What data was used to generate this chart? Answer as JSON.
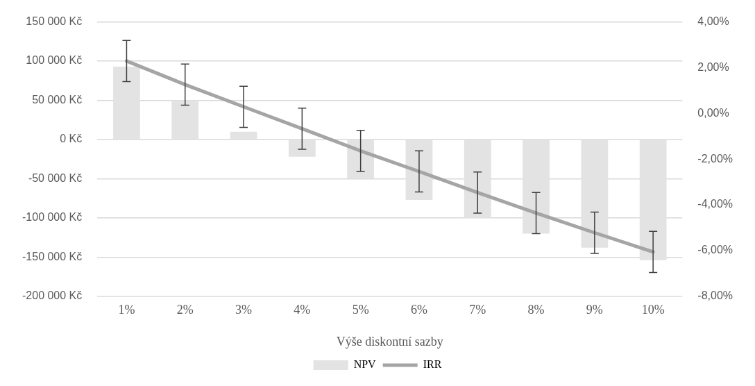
{
  "chart_data": {
    "type": "bar",
    "categories": [
      "1%",
      "2%",
      "3%",
      "4%",
      "5%",
      "6%",
      "7%",
      "8%",
      "9%",
      "10%"
    ],
    "xlabel": "Výše diskontní sazby",
    "series": [
      {
        "name": "NPV",
        "color": "#e3e3e3",
        "values": [
          93000,
          49000,
          10000,
          -22000,
          -50000,
          -77000,
          -100000,
          -120000,
          -138000,
          -154000
        ]
      },
      {
        "name": "IRR",
        "type": "line",
        "axis": "y2",
        "color": "#a5a5a5",
        "values": [
          2.29,
          1.26,
          0.29,
          -0.67,
          -1.64,
          -2.54,
          -3.46,
          -4.36,
          -5.22,
          -6.06
        ],
        "errors": [
          0.9,
          0.9,
          0.9,
          0.9,
          0.9,
          0.9,
          0.9,
          0.9,
          0.9,
          0.9
        ]
      }
    ],
    "ylim": [
      -200000,
      150000
    ],
    "yticks": [
      {
        "value": -200000,
        "label": "-200 000 Kč"
      },
      {
        "value": -150000,
        "label": "-150 000 Kč"
      },
      {
        "value": -100000,
        "label": "-100 000 Kč"
      },
      {
        "value": -50000,
        "label": "-50 000 Kč"
      },
      {
        "value": 0,
        "label": "0 Kč"
      },
      {
        "value": 50000,
        "label": "50 000 Kč"
      },
      {
        "value": 100000,
        "label": "100 000 Kč"
      },
      {
        "value": 150000,
        "label": "150 000 Kč"
      }
    ],
    "y2lim": [
      -8,
      4
    ],
    "y2ticks": [
      {
        "value": -8,
        "label": "-8,00%"
      },
      {
        "value": -6,
        "label": "-6,00%"
      },
      {
        "value": -4,
        "label": "-4,00%"
      },
      {
        "value": -2,
        "label": "-2,00%"
      },
      {
        "value": 0,
        "label": "0,00%"
      },
      {
        "value": 2,
        "label": "2,00%"
      },
      {
        "value": 4,
        "label": "4,00%"
      }
    ],
    "grid": "y",
    "legend": "bottom",
    "marker": "none",
    "line_style": "solid"
  }
}
